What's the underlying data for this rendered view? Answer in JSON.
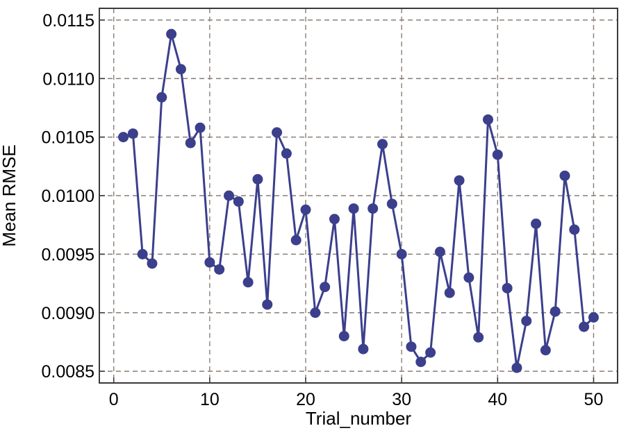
{
  "chart_data": {
    "type": "line",
    "title": "",
    "xlabel": "Trial_number",
    "ylabel": "Mean RMSE",
    "xlim": [
      -1.5,
      52.5
    ],
    "ylim": [
      0.0084,
      0.0116
    ],
    "xticks": [
      0,
      10,
      20,
      30,
      40,
      50
    ],
    "xtick_labels": [
      "0",
      "10",
      "20",
      "30",
      "40",
      "50"
    ],
    "yticks": [
      0.0085,
      0.009,
      0.0095,
      0.01,
      0.0105,
      0.011,
      0.0115
    ],
    "ytick_labels": [
      "0.0085",
      "0.0090",
      "0.0095",
      "0.0100",
      "0.0105",
      "0.0110",
      "0.0115"
    ],
    "grid": true,
    "legend": "none",
    "series": [
      {
        "color": "#3b3f8c",
        "marker": "circle",
        "x": [
          1,
          2,
          3,
          4,
          5,
          6,
          7,
          8,
          9,
          10,
          11,
          12,
          13,
          14,
          15,
          16,
          17,
          18,
          19,
          20,
          21,
          22,
          23,
          24,
          25,
          26,
          27,
          28,
          29,
          30,
          31,
          32,
          33,
          34,
          35,
          36,
          37,
          38,
          39,
          40,
          41,
          42,
          43,
          44,
          45,
          46,
          47,
          48,
          49,
          50
        ],
        "y": [
          0.0105,
          0.01053,
          0.0095,
          0.00942,
          0.01084,
          0.01138,
          0.01108,
          0.01045,
          0.01058,
          0.00943,
          0.00937,
          0.01,
          0.00995,
          0.00926,
          0.01014,
          0.00907,
          0.01054,
          0.01036,
          0.00962,
          0.00988,
          0.009,
          0.00922,
          0.0098,
          0.0088,
          0.00989,
          0.00869,
          0.00989,
          0.01044,
          0.00993,
          0.0095,
          0.00871,
          0.00858,
          0.00866,
          0.00952,
          0.00917,
          0.01013,
          0.0093,
          0.00879,
          0.01065,
          0.01035,
          0.00921,
          0.00853,
          0.00893,
          0.00976,
          0.00868,
          0.00901,
          0.01017,
          0.00971,
          0.00888,
          0.00896
        ]
      }
    ]
  }
}
